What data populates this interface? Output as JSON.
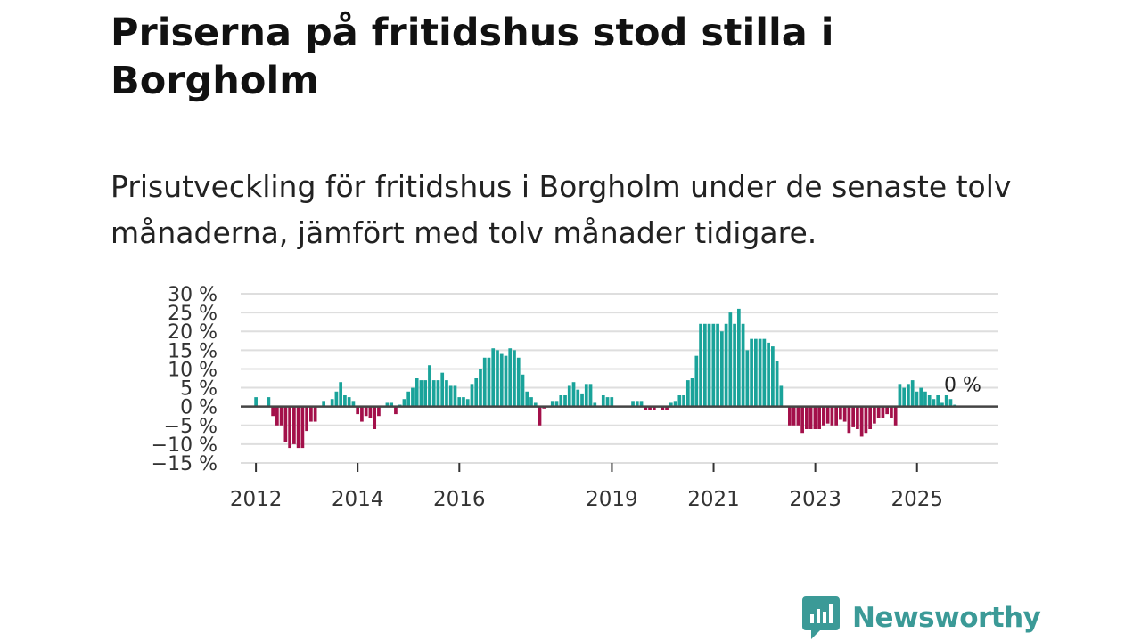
{
  "title": "Priserna på fritidshus stod stilla i Borgholm",
  "subtitle": "Prisutveckling för fritidshus i Borgholm under de senaste tolv månaderna, jämfört med tolv månader tidigare.",
  "brand": {
    "name": "Newsworthy",
    "color": "#3b9a97",
    "icon": "newsworthy-logo-icon"
  },
  "colors": {
    "positive": "#1aa39a",
    "negative": "#a3104a",
    "grid": "#dedede",
    "zero": "#444444"
  },
  "chart_data": {
    "type": "bar",
    "title": "Priserna på fritidshus stod stilla i Borgholm",
    "ylabel": "",
    "xlabel": "",
    "ylim": [
      -15,
      30
    ],
    "yticks": [
      30,
      25,
      20,
      15,
      10,
      5,
      0,
      -5,
      -10,
      -15
    ],
    "ytick_labels": [
      "30 %",
      "25 %",
      "20 %",
      "15 %",
      "10 %",
      "5 %",
      "0 %",
      "−5 %",
      "−10 %",
      "−15 %"
    ],
    "x_start_year": 2011.7,
    "x_end_year": 2026.6,
    "xticks": [
      2012,
      2014,
      2016,
      2019,
      2021,
      2023,
      2025
    ],
    "xtick_labels": [
      "2012",
      "2014",
      "2016",
      "2019",
      "2021",
      "2023",
      "2025"
    ],
    "last_value_label": "0 %",
    "series": [
      {
        "name": "Prisutveckling",
        "start": 2012.0,
        "step": 0.0833,
        "values": [
          2.5,
          0,
          0,
          2.5,
          -2.5,
          -5,
          -5,
          -9.5,
          -11,
          -10,
          -11,
          -11,
          -6.5,
          -4,
          -4,
          0,
          1.5,
          0,
          2,
          4,
          6.5,
          3,
          2.5,
          1.5,
          -2,
          -4,
          -2.5,
          -3,
          -6,
          -2.5,
          0,
          1,
          1,
          -2,
          0.5,
          2,
          4,
          5,
          7.5,
          7,
          7,
          11,
          7,
          7,
          9,
          7,
          5.5,
          5.5,
          2.5,
          2.5,
          2,
          6,
          7.5,
          10,
          13,
          13,
          15.5,
          15,
          14,
          13.5,
          15.5,
          15,
          13,
          8.5,
          4,
          2.5,
          1,
          -5,
          -0.5,
          0,
          1.5,
          1.5,
          3,
          3,
          5.5,
          6.5,
          4.5,
          3.5,
          6,
          6,
          1,
          0,
          3,
          2.5,
          2.5,
          0,
          0,
          0,
          0,
          1.5,
          1.5,
          1.5,
          -1,
          -1,
          -1,
          0,
          -1,
          -1,
          1,
          1.5,
          3,
          3,
          7,
          7.5,
          13.5,
          22,
          22,
          22,
          22,
          22,
          20,
          22,
          25,
          22,
          26,
          22,
          15,
          18,
          18,
          18,
          18,
          17,
          16,
          12,
          5.5,
          0,
          -5,
          -5,
          -5,
          -7,
          -6,
          -6,
          -6,
          -6,
          -5,
          -4.5,
          -5,
          -5,
          -3.5,
          -4,
          -7,
          -5.5,
          -6,
          -8,
          -7,
          -6,
          -4.5,
          -3,
          -3,
          -2,
          -3,
          -5,
          6,
          5,
          6,
          7,
          4,
          5,
          4,
          3,
          2,
          3,
          1,
          3,
          2,
          0.5,
          0
        ]
      }
    ]
  }
}
